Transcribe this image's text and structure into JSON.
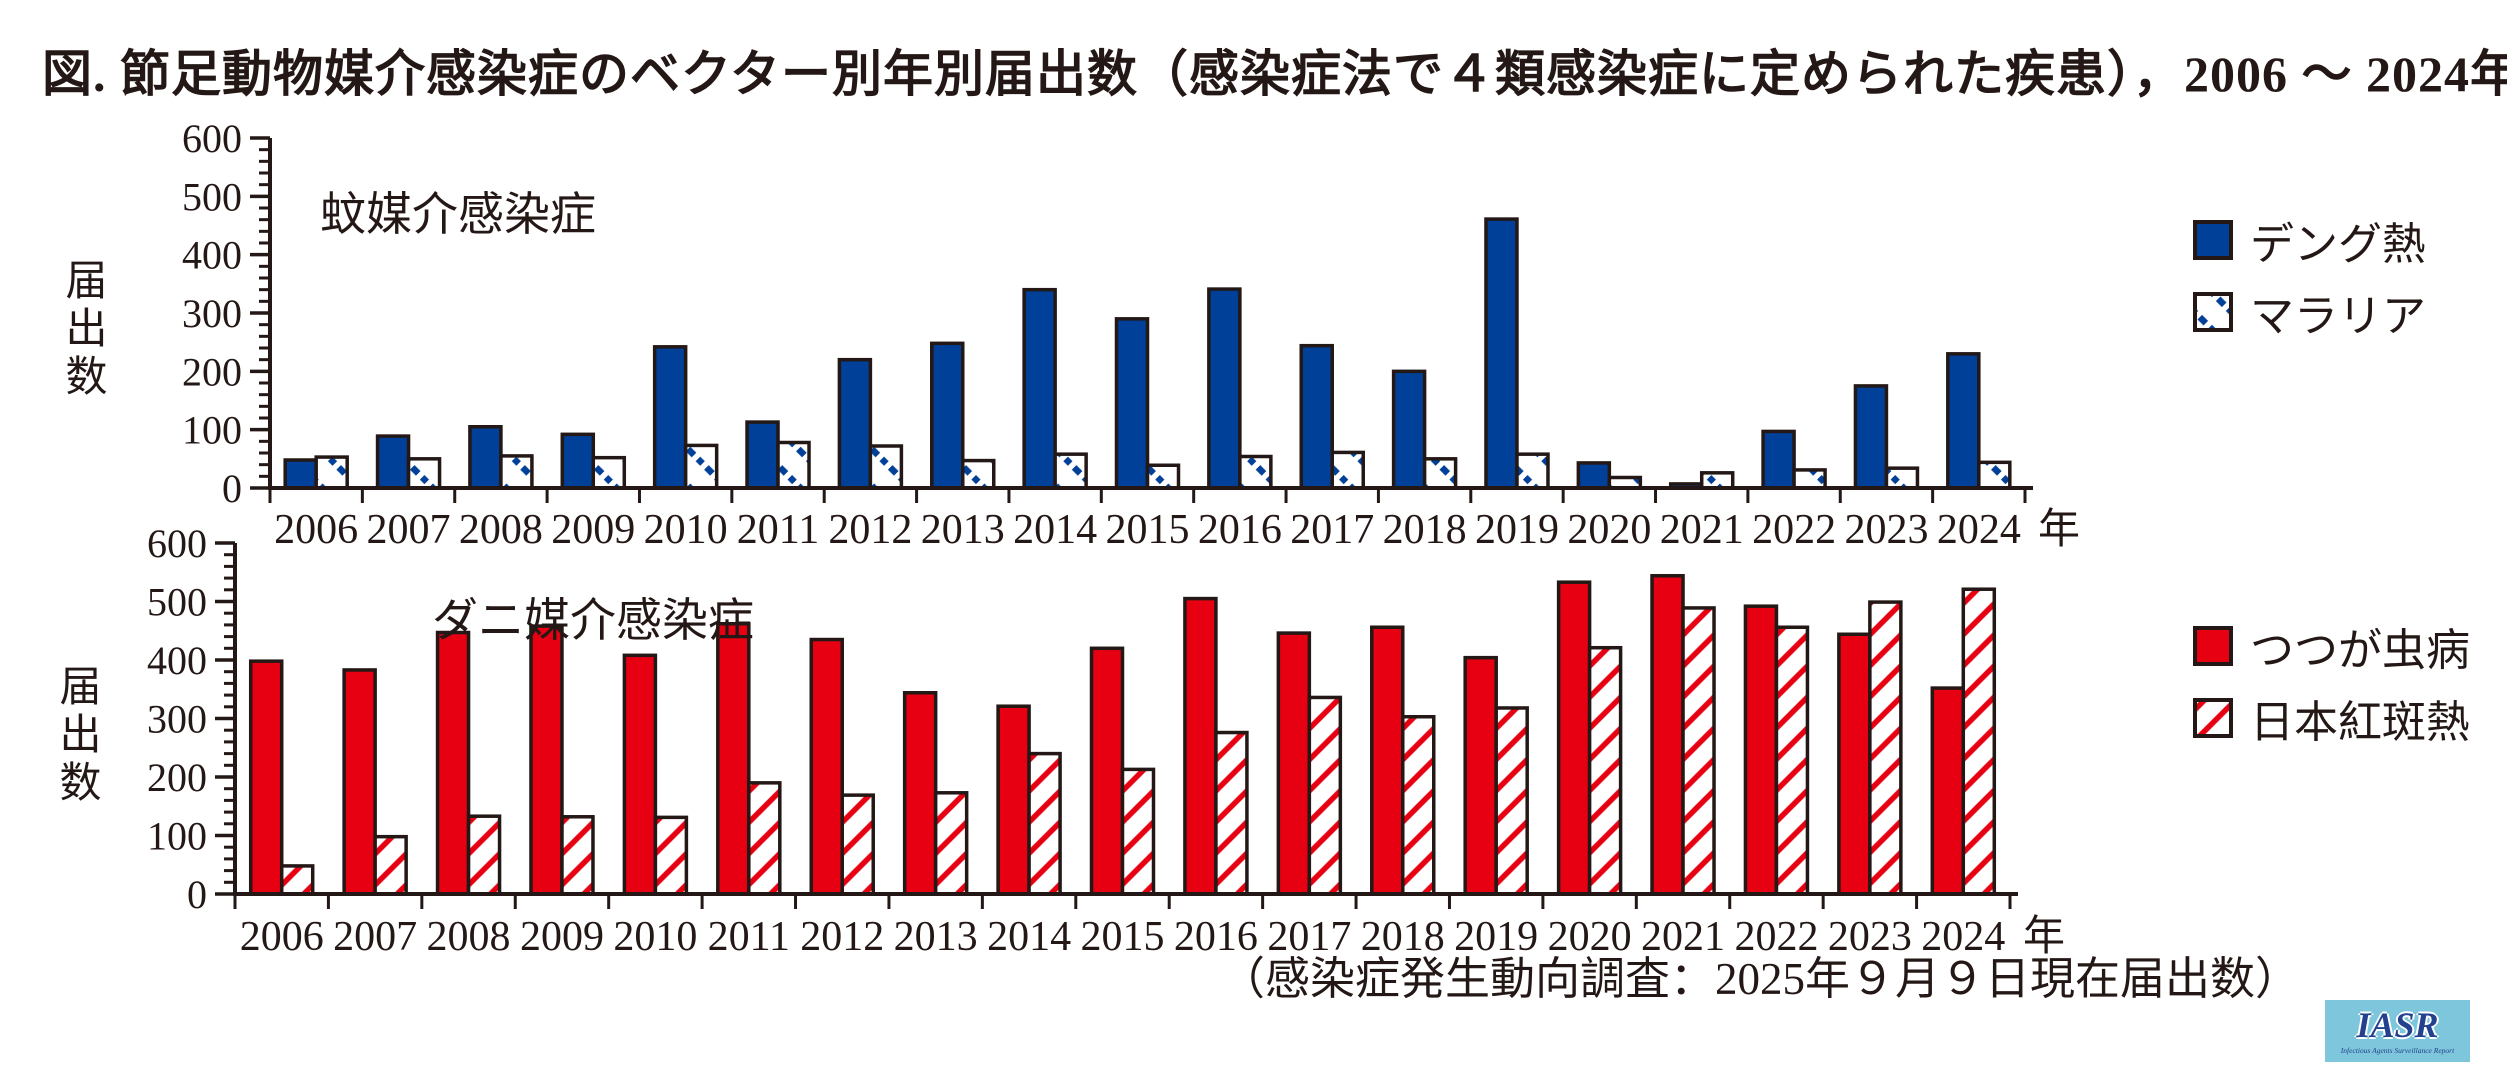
{
  "title": "図. 節足動物媒介感染症のベクター別年別届出数（感染症法で４類感染症に定められた疾患），2006 ～ 2024年",
  "caption": "（感染症発生動向調査：2025年９月９日現在届出数）",
  "logo": {
    "text": "IASR",
    "subtext": "Infectious Agents Surveillance Report"
  },
  "colors": {
    "ink": "#231815",
    "dengue_blue": "#004098",
    "scrub_red": "#e60012",
    "logo_bg": "#7ec6db",
    "logo_text": "#23418e"
  },
  "chart_data": [
    {
      "type": "bar",
      "title": "蚊媒介感染症",
      "ylabel": "届出数",
      "x_suffix": "年",
      "ylim": [
        0,
        600
      ],
      "y_major_step": 100,
      "y_minor_step": 20,
      "grid": false,
      "legend_position": "right",
      "categories": [
        "2006",
        "2007",
        "2008",
        "2009",
        "2010",
        "2011",
        "2012",
        "2013",
        "2014",
        "2015",
        "2016",
        "2017",
        "2018",
        "2019",
        "2020",
        "2021",
        "2022",
        "2023",
        "2024"
      ],
      "series": [
        {
          "name": "デング熱",
          "style": "solid-blue",
          "values": [
            48,
            89,
            105,
            92,
            242,
            113,
            220,
            248,
            340,
            290,
            341,
            244,
            200,
            461,
            43,
            7,
            97,
            175,
            230
          ]
        },
        {
          "name": "マラリア",
          "style": "dotted-blue-hatch",
          "values": [
            53,
            50,
            55,
            52,
            73,
            78,
            72,
            47,
            58,
            39,
            54,
            61,
            50,
            58,
            18,
            26,
            31,
            34,
            44
          ]
        }
      ]
    },
    {
      "type": "bar",
      "title": "ダニ媒介感染症",
      "ylabel": "届出数",
      "x_suffix": "年",
      "ylim": [
        0,
        600
      ],
      "y_major_step": 100,
      "y_minor_step": 20,
      "grid": false,
      "legend_position": "right",
      "categories": [
        "2006",
        "2007",
        "2008",
        "2009",
        "2010",
        "2011",
        "2012",
        "2013",
        "2014",
        "2015",
        "2016",
        "2017",
        "2018",
        "2019",
        "2020",
        "2021",
        "2022",
        "2023",
        "2024"
      ],
      "series": [
        {
          "name": "つつが虫病",
          "style": "solid-red",
          "values": [
            398,
            383,
            447,
            458,
            408,
            462,
            435,
            344,
            321,
            420,
            505,
            446,
            456,
            404,
            533,
            544,
            492,
            444,
            352
          ]
        },
        {
          "name": "日本紅斑熱",
          "style": "red-hatch",
          "values": [
            48,
            98,
            133,
            132,
            131,
            190,
            169,
            173,
            240,
            213,
            276,
            336,
            303,
            318,
            421,
            489,
            456,
            499,
            521
          ]
        }
      ]
    }
  ]
}
